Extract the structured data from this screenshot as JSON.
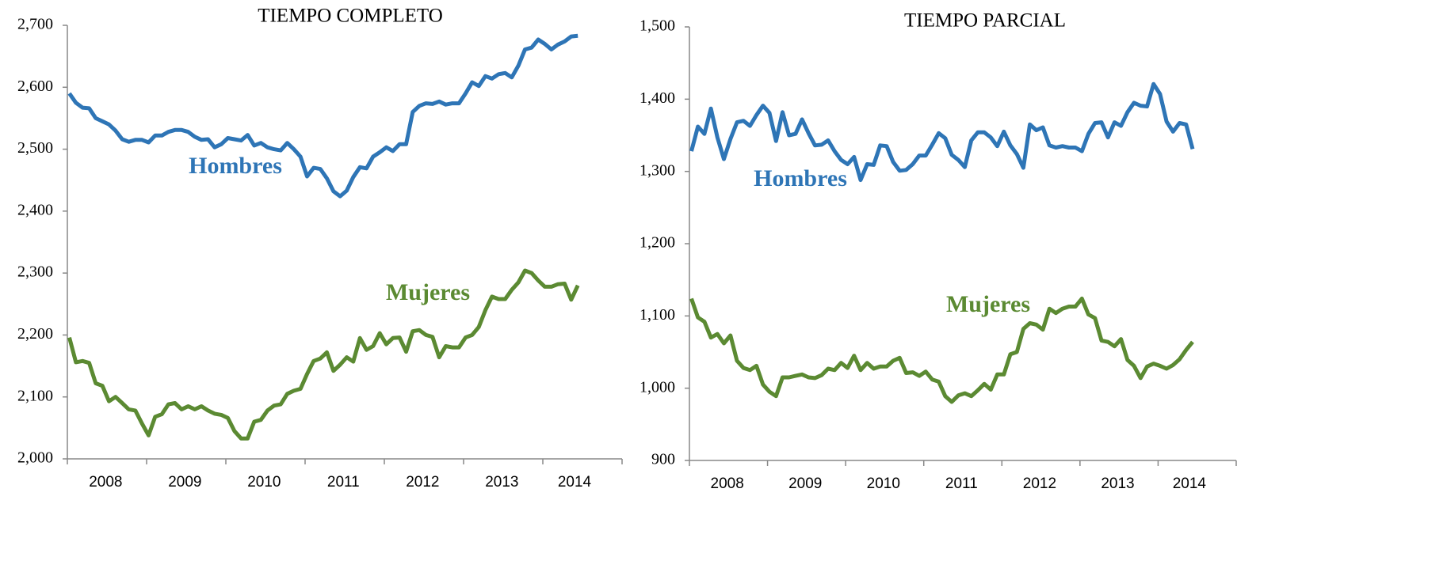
{
  "chart_data": [
    {
      "type": "line",
      "title": "TIEMPO COMPLETO",
      "categories": [
        "2008",
        null,
        null,
        null,
        null,
        null,
        null,
        null,
        null,
        null,
        null,
        null,
        "2009",
        null,
        null,
        null,
        null,
        null,
        null,
        null,
        null,
        null,
        null,
        null,
        "2010",
        null,
        null,
        null,
        null,
        null,
        null,
        null,
        null,
        null,
        null,
        null,
        "2011",
        null,
        null,
        null,
        null,
        null,
        null,
        null,
        null,
        null,
        null,
        null,
        "2012",
        null,
        null,
        null,
        null,
        null,
        null,
        null,
        null,
        null,
        null,
        null,
        "2013",
        null,
        null,
        null,
        null,
        null,
        null,
        null,
        null,
        null,
        null,
        null,
        "2014",
        null,
        null,
        null,
        null,
        null
      ],
      "series": [
        {
          "name": "Hombres",
          "color": "#2e75b6",
          "values": [
            2590,
            2575,
            2567,
            2566,
            2550,
            2545,
            2540,
            2530,
            2516,
            2512,
            2515,
            2515,
            2511,
            2522,
            2522,
            2528,
            2531,
            2531,
            2528,
            2520,
            2515,
            2516,
            2503,
            2508,
            2518,
            2516,
            2514,
            2523,
            2506,
            2510,
            2503,
            2500,
            2498,
            2510,
            2500,
            2488,
            2456,
            2470,
            2468,
            2453,
            2432,
            2424,
            2433,
            2455,
            2471,
            2469,
            2488,
            2495,
            2503,
            2497,
            2508,
            2508,
            2560,
            2570,
            2574,
            2573,
            2577,
            2572,
            2574,
            2574,
            2590,
            2608,
            2602,
            2618,
            2614,
            2621,
            2623,
            2616,
            2635,
            2661,
            2664,
            2677,
            2670,
            2661,
            2669,
            2674,
            2682,
            2683
          ]
        },
        {
          "name": "Mujeres",
          "color": "#5b8a32",
          "values": [
            2196,
            2156,
            2158,
            2155,
            2122,
            2118,
            2093,
            2100,
            2090,
            2080,
            2078,
            2057,
            2038,
            2068,
            2072,
            2088,
            2090,
            2080,
            2085,
            2080,
            2085,
            2078,
            2073,
            2071,
            2066,
            2045,
            2033,
            2033,
            2060,
            2063,
            2078,
            2086,
            2088,
            2105,
            2110,
            2113,
            2137,
            2158,
            2162,
            2172,
            2142,
            2152,
            2164,
            2157,
            2195,
            2176,
            2182,
            2203,
            2185,
            2195,
            2196,
            2173,
            2206,
            2208,
            2200,
            2197,
            2164,
            2182,
            2180,
            2180,
            2196,
            2200,
            2213,
            2240,
            2262,
            2258,
            2258,
            2273,
            2285,
            2304,
            2300,
            2288,
            2278,
            2278,
            2282,
            2283,
            2257,
            2280
          ]
        }
      ],
      "ylim": [
        2000,
        2700
      ],
      "yticks": [
        {
          "value": 2000,
          "label": "2,000"
        },
        {
          "value": 2100,
          "label": "2,100"
        },
        {
          "value": 2200,
          "label": "2,200"
        },
        {
          "value": 2300,
          "label": "2,300"
        },
        {
          "value": 2400,
          "label": "2,400"
        },
        {
          "value": 2500,
          "label": "2,500"
        },
        {
          "value": 2600,
          "label": "2,600"
        },
        {
          "value": 2700,
          "label": "2,700"
        }
      ]
    },
    {
      "type": "line",
      "title": "TIEMPO PARCIAL",
      "categories": [
        "2008",
        null,
        null,
        null,
        null,
        null,
        null,
        null,
        null,
        null,
        null,
        null,
        "2009",
        null,
        null,
        null,
        null,
        null,
        null,
        null,
        null,
        null,
        null,
        null,
        "2010",
        null,
        null,
        null,
        null,
        null,
        null,
        null,
        null,
        null,
        null,
        null,
        "2011",
        null,
        null,
        null,
        null,
        null,
        null,
        null,
        null,
        null,
        null,
        null,
        "2012",
        null,
        null,
        null,
        null,
        null,
        null,
        null,
        null,
        null,
        null,
        null,
        "2013",
        null,
        null,
        null,
        null,
        null,
        null,
        null,
        null,
        null,
        null,
        null,
        "2014",
        null,
        null,
        null,
        null,
        null
      ],
      "series": [
        {
          "name": "Hombres",
          "color": "#2e75b6",
          "values": [
            1328,
            1362,
            1352,
            1387,
            1347,
            1317,
            1345,
            1368,
            1370,
            1363,
            1378,
            1391,
            1381,
            1342,
            1382,
            1350,
            1352,
            1372,
            1353,
            1336,
            1337,
            1343,
            1328,
            1316,
            1310,
            1320,
            1288,
            1310,
            1309,
            1336,
            1335,
            1313,
            1301,
            1302,
            1310,
            1322,
            1322,
            1337,
            1353,
            1346,
            1323,
            1316,
            1306,
            1343,
            1354,
            1354,
            1347,
            1335,
            1355,
            1336,
            1324,
            1305,
            1365,
            1357,
            1361,
            1336,
            1333,
            1335,
            1333,
            1333,
            1328,
            1352,
            1367,
            1368,
            1347,
            1368,
            1363,
            1382,
            1395,
            1391,
            1390,
            1421,
            1407,
            1369,
            1355,
            1367,
            1365,
            1331
          ]
        },
        {
          "name": "Mujeres",
          "color": "#5b8a32",
          "values": [
            1124,
            1098,
            1092,
            1070,
            1075,
            1062,
            1073,
            1038,
            1028,
            1025,
            1031,
            1005,
            995,
            989,
            1015,
            1015,
            1017,
            1019,
            1015,
            1014,
            1018,
            1027,
            1025,
            1035,
            1028,
            1045,
            1025,
            1035,
            1027,
            1030,
            1030,
            1038,
            1042,
            1021,
            1022,
            1017,
            1023,
            1012,
            1009,
            989,
            981,
            990,
            993,
            989,
            997,
            1006,
            998,
            1019,
            1019,
            1047,
            1050,
            1082,
            1090,
            1088,
            1081,
            1110,
            1104,
            1110,
            1113,
            1113,
            1124,
            1102,
            1097,
            1066,
            1064,
            1058,
            1068,
            1039,
            1031,
            1014,
            1030,
            1034,
            1031,
            1027,
            1032,
            1040,
            1053,
            1064
          ]
        }
      ],
      "ylim": [
        900,
        1500
      ],
      "yticks": [
        {
          "value": 900,
          "label": "900"
        },
        {
          "value": 1000,
          "label": "1,000"
        },
        {
          "value": 1100,
          "label": "1,100"
        },
        {
          "value": 1200,
          "label": "1,200"
        },
        {
          "value": 1300,
          "label": "1,300"
        },
        {
          "value": 1400,
          "label": "1,400"
        },
        {
          "value": 1500,
          "label": "1,500"
        }
      ]
    }
  ]
}
